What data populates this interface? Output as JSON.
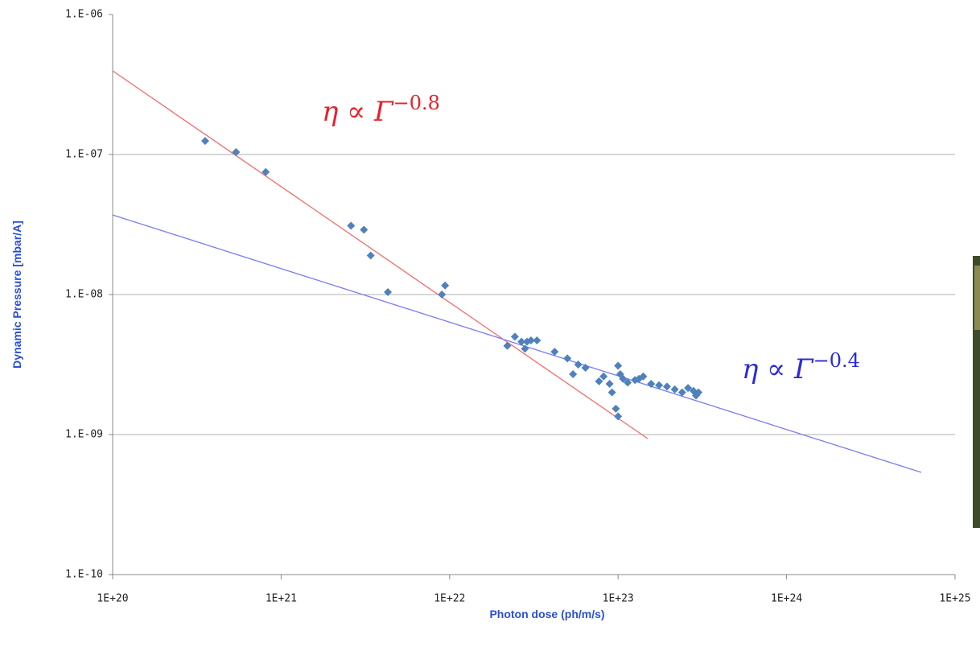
{
  "chart_data": {
    "type": "scatter",
    "xlabel": "Photon dose (ph/m/s)",
    "ylabel": "Dynamic Pressure [mbar/A]",
    "log_x": true,
    "log_y": true,
    "grid": true,
    "xlim": [
      1e+20,
      1e+25
    ],
    "ylim": [
      1e-10,
      1e-06
    ],
    "xticks": [
      {
        "value": 1e+20,
        "label": "1E+20"
      },
      {
        "value": 1e+21,
        "label": "1E+21"
      },
      {
        "value": 1e+22,
        "label": "1E+22"
      },
      {
        "value": 1e+23,
        "label": "1E+23"
      },
      {
        "value": 1e+24,
        "label": "1E+24"
      },
      {
        "value": 1e+25,
        "label": "1E+25"
      }
    ],
    "yticks": [
      {
        "value": 1e-10,
        "label": "1.E-10"
      },
      {
        "value": 1e-09,
        "label": "1.E-09"
      },
      {
        "value": 1e-08,
        "label": "1.E-08"
      },
      {
        "value": 1e-07,
        "label": "1.E-07"
      },
      {
        "value": 1e-06,
        "label": "1.E-06"
      }
    ],
    "series": [
      {
        "type": "scatter",
        "color": "#4f81bd",
        "x": [
          3.54e+20,
          5.4e+20,
          8.1e+20,
          2.6e+21,
          3.1e+21,
          3.4e+21,
          4.3e+21,
          9e+21,
          9.4e+21,
          2.2e+22,
          2.44e+22,
          2.67e+22,
          2.88e+22,
          2.8e+22,
          3.04e+22,
          3.3e+22,
          4.2e+22,
          5e+22,
          5.4e+22,
          5.8e+22,
          6.4e+22,
          7.7e+22,
          8.2e+22,
          8.9e+22,
          9.2e+22,
          9.7e+22,
          1e+23,
          1e+23,
          1.03e+23,
          1.07e+23,
          1.14e+23,
          1.26e+23,
          1.33e+23,
          1.41e+23,
          1.57e+23,
          1.75e+23,
          1.95e+23,
          2.17e+23,
          2.4e+23,
          2.6e+23,
          2.8e+23,
          3e+23,
          2.9e+23
        ],
        "values": [
          1.25e-07,
          1.04e-07,
          7.5e-08,
          3.1e-08,
          2.9e-08,
          1.9e-08,
          1.04e-08,
          1e-08,
          1.16e-08,
          4.3e-09,
          5e-09,
          4.6e-09,
          4.6e-09,
          4.1e-09,
          4.7e-09,
          4.7e-09,
          3.9e-09,
          3.5e-09,
          2.7e-09,
          3.16e-09,
          3e-09,
          2.4e-09,
          2.6e-09,
          2.3e-09,
          2e-09,
          1.53e-09,
          1.35e-09,
          3.1e-09,
          2.7e-09,
          2.5e-09,
          2.35e-09,
          2.45e-09,
          2.5e-09,
          2.6e-09,
          2.3e-09,
          2.25e-09,
          2.2e-09,
          2.1e-09,
          2e-09,
          2.15e-09,
          2.05e-09,
          2e-09,
          1.9e-09
        ]
      },
      {
        "type": "line",
        "color": "#f26d6d",
        "x": [
          1e+20,
          1.5e+23
        ],
        "values": [
          3.96e-07,
          9.35e-10
        ]
      },
      {
        "type": "line",
        "color": "#7b7bf5",
        "x": [
          1e+20,
          6.3e+24
        ],
        "values": [
          3.7e-08,
          5.37e-10
        ]
      }
    ],
    "annotations": [
      {
        "text": "η ∝ Γ",
        "superscript": "−0.8",
        "color": "#e8222a"
      },
      {
        "text": "η ∝ Γ",
        "superscript": "−0.4",
        "color": "#2b2bd9"
      }
    ]
  }
}
